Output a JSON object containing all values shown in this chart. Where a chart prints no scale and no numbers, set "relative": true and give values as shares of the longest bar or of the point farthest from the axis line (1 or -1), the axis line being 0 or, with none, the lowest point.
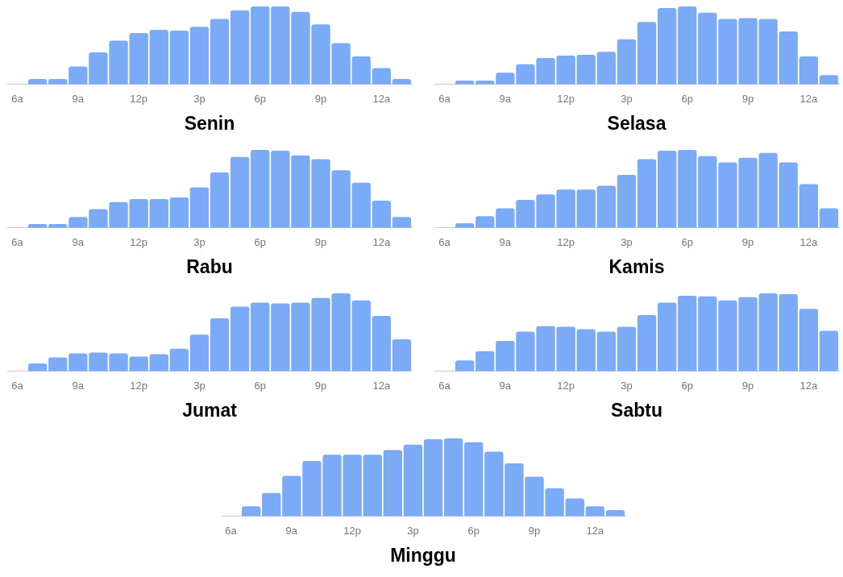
{
  "chart_data": [
    {
      "type": "bar",
      "xlabel": "Senin",
      "relative": true,
      "grid": false,
      "tick_labels": "x",
      "categories": [
        "6a",
        null,
        null,
        "9a",
        null,
        null,
        "12p",
        null,
        null,
        "3p",
        null,
        null,
        "6p",
        null,
        null,
        "9p",
        null,
        null,
        "12a",
        null
      ],
      "series": [
        {
          "color": "#7baaf7",
          "values": [
            0,
            0.07,
            0.07,
            0.23,
            0.41,
            0.56,
            0.66,
            0.7,
            0.69,
            0.74,
            0.84,
            0.95,
            1,
            1,
            0.93,
            0.77,
            0.53,
            0.36,
            0.21,
            0.07
          ]
        }
      ]
    },
    {
      "type": "bar",
      "xlabel": "Selasa",
      "relative": true,
      "grid": false,
      "tick_labels": "x",
      "categories": [
        "6a",
        null,
        null,
        "9a",
        null,
        null,
        "12p",
        null,
        null,
        "3p",
        null,
        null,
        "6p",
        null,
        null,
        "9p",
        null,
        null,
        "12a",
        null
      ],
      "series": [
        {
          "color": "#7baaf7",
          "values": [
            0,
            0.05,
            0.05,
            0.15,
            0.26,
            0.34,
            0.37,
            0.38,
            0.42,
            0.58,
            0.8,
            0.98,
            1,
            0.92,
            0.84,
            0.85,
            0.84,
            0.68,
            0.36,
            0.12
          ]
        }
      ]
    },
    {
      "type": "bar",
      "xlabel": "Rabu",
      "relative": true,
      "grid": false,
      "tick_labels": "x",
      "categories": [
        "6a",
        null,
        null,
        "9a",
        null,
        null,
        "12p",
        null,
        null,
        "3p",
        null,
        null,
        "6p",
        null,
        null,
        "9p",
        null,
        null,
        "12a",
        null
      ],
      "series": [
        {
          "color": "#7baaf7",
          "values": [
            0,
            0.05,
            0.05,
            0.14,
            0.24,
            0.33,
            0.37,
            0.37,
            0.39,
            0.52,
            0.71,
            0.91,
            1,
            0.99,
            0.93,
            0.88,
            0.74,
            0.58,
            0.35,
            0.14
          ]
        }
      ]
    },
    {
      "type": "bar",
      "xlabel": "Kamis",
      "relative": true,
      "grid": false,
      "tick_labels": "x",
      "categories": [
        "6a",
        null,
        null,
        "9a",
        null,
        null,
        "12p",
        null,
        null,
        "3p",
        null,
        null,
        "6p",
        null,
        null,
        "9p",
        null,
        null,
        "12a",
        null
      ],
      "series": [
        {
          "color": "#7baaf7",
          "values": [
            0,
            0.06,
            0.15,
            0.25,
            0.36,
            0.43,
            0.49,
            0.49,
            0.54,
            0.68,
            0.88,
            0.99,
            1,
            0.92,
            0.84,
            0.9,
            0.96,
            0.84,
            0.56,
            0.25
          ]
        }
      ]
    },
    {
      "type": "bar",
      "xlabel": "Jumat",
      "relative": true,
      "grid": false,
      "tick_labels": "x",
      "categories": [
        "6a",
        null,
        null,
        "9a",
        null,
        null,
        "12p",
        null,
        null,
        "3p",
        null,
        null,
        "6p",
        null,
        null,
        "9p",
        null,
        null,
        "12a",
        null
      ],
      "series": [
        {
          "color": "#7baaf7",
          "values": [
            0,
            0.1,
            0.18,
            0.23,
            0.24,
            0.23,
            0.19,
            0.22,
            0.29,
            0.47,
            0.68,
            0.83,
            0.88,
            0.87,
            0.88,
            0.94,
            1,
            0.91,
            0.71,
            0.41
          ]
        }
      ]
    },
    {
      "type": "bar",
      "xlabel": "Sabtu",
      "relative": true,
      "grid": false,
      "tick_labels": "x",
      "categories": [
        "6a",
        null,
        null,
        "9a",
        null,
        null,
        "12p",
        null,
        null,
        "3p",
        null,
        null,
        "6p",
        null,
        null,
        "9p",
        null,
        null,
        "12a",
        null
      ],
      "series": [
        {
          "color": "#7baaf7",
          "values": [
            0,
            0.14,
            0.26,
            0.39,
            0.51,
            0.58,
            0.57,
            0.54,
            0.51,
            0.57,
            0.72,
            0.88,
            0.97,
            0.96,
            0.91,
            0.95,
            1,
            0.99,
            0.8,
            0.52
          ]
        }
      ]
    },
    {
      "type": "bar",
      "xlabel": "Minggu",
      "relative": true,
      "grid": false,
      "tick_labels": "x",
      "categories": [
        "6a",
        null,
        null,
        "9a",
        null,
        null,
        "12p",
        null,
        null,
        "3p",
        null,
        null,
        "6p",
        null,
        null,
        "9p",
        null,
        null,
        "12a",
        null
      ],
      "series": [
        {
          "color": "#7baaf7",
          "values": [
            0,
            0.13,
            0.3,
            0.52,
            0.71,
            0.79,
            0.79,
            0.79,
            0.85,
            0.92,
            0.99,
            1,
            0.95,
            0.83,
            0.68,
            0.51,
            0.36,
            0.23,
            0.13,
            0.08
          ]
        }
      ]
    }
  ]
}
